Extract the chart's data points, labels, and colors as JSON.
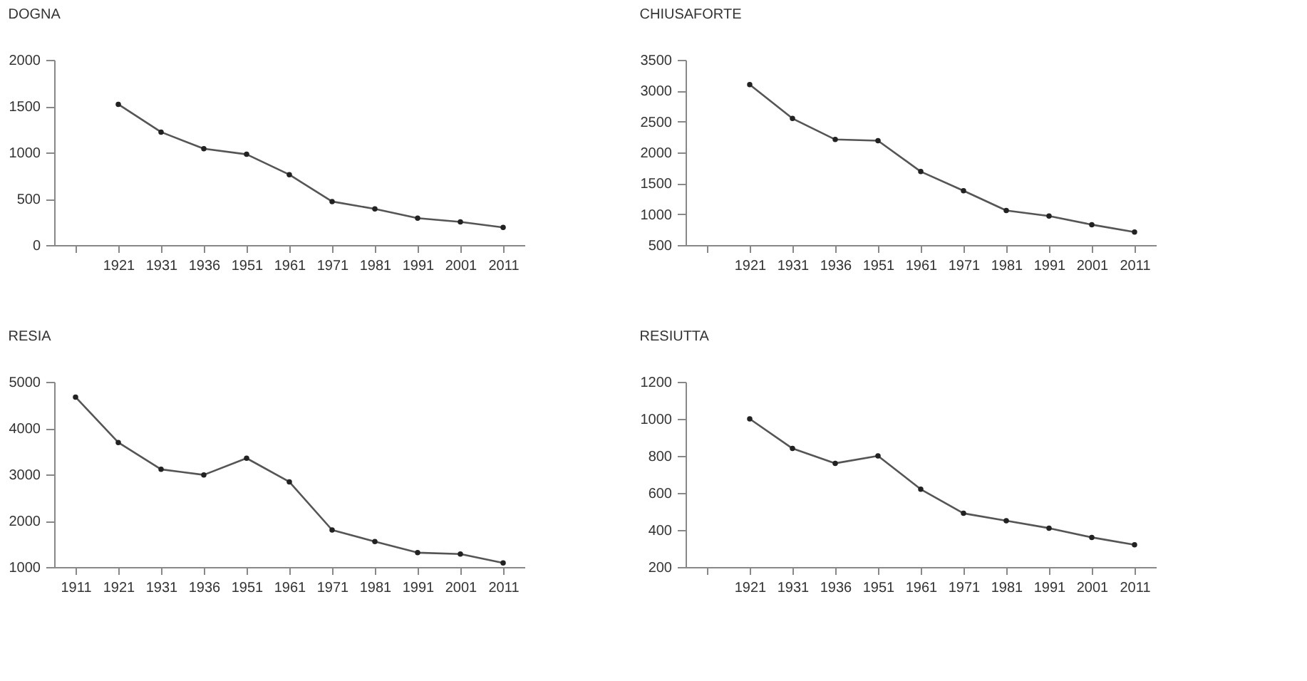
{
  "chart_data": [
    {
      "type": "line",
      "title": "DOGNA",
      "categories": [
        null,
        "1921",
        "1931",
        "1936",
        "1951",
        "1961",
        "1971",
        "1981",
        "1991",
        "2001",
        "2011"
      ],
      "series": [
        {
          "color": "#555555",
          "values": [
            null,
            1520,
            1220,
            1040,
            980,
            760,
            470,
            390,
            290,
            250,
            190
          ]
        }
      ],
      "ylim": [
        0,
        2000
      ],
      "yticks": [
        0,
        500,
        1000,
        1500,
        2000
      ],
      "marker": "circle",
      "grid": false
    },
    {
      "type": "line",
      "title": "CHIUSAFORTE",
      "categories": [
        null,
        "1921",
        "1931",
        "1936",
        "1951",
        "1961",
        "1971",
        "1981",
        "1991",
        "2001",
        "2011"
      ],
      "series": [
        {
          "color": "#555555",
          "values": [
            null,
            3100,
            2550,
            2210,
            2190,
            1690,
            1380,
            1060,
            970,
            830,
            710
          ]
        }
      ],
      "ylim": [
        500,
        3500
      ],
      "yticks": [
        500,
        1000,
        1500,
        2000,
        2500,
        3000,
        3500
      ],
      "marker": "circle",
      "grid": false
    },
    {
      "type": "line",
      "title": "RESIA",
      "categories": [
        "1911",
        "1921",
        "1931",
        "1936",
        "1951",
        "1961",
        "1971",
        "1981",
        "1991",
        "2001",
        "2011"
      ],
      "series": [
        {
          "color": "#555555",
          "values": [
            4670,
            3690,
            3110,
            2990,
            3350,
            2840,
            1800,
            1550,
            1310,
            1280,
            1090
          ]
        }
      ],
      "ylim": [
        1000,
        5000
      ],
      "yticks": [
        1000,
        2000,
        3000,
        4000,
        5000
      ],
      "marker": "circle",
      "grid": false
    },
    {
      "type": "line",
      "title": "RESIUTTA",
      "categories": [
        null,
        "1921",
        "1931",
        "1936",
        "1951",
        "1961",
        "1971",
        "1981",
        "1991",
        "2001",
        "2011"
      ],
      "series": [
        {
          "color": "#555555",
          "values": [
            null,
            1000,
            840,
            760,
            800,
            620,
            490,
            450,
            410,
            360,
            320
          ]
        }
      ],
      "ylim": [
        200,
        1200
      ],
      "yticks": [
        200,
        400,
        600,
        800,
        1000,
        1200
      ],
      "marker": "circle",
      "grid": false
    }
  ]
}
